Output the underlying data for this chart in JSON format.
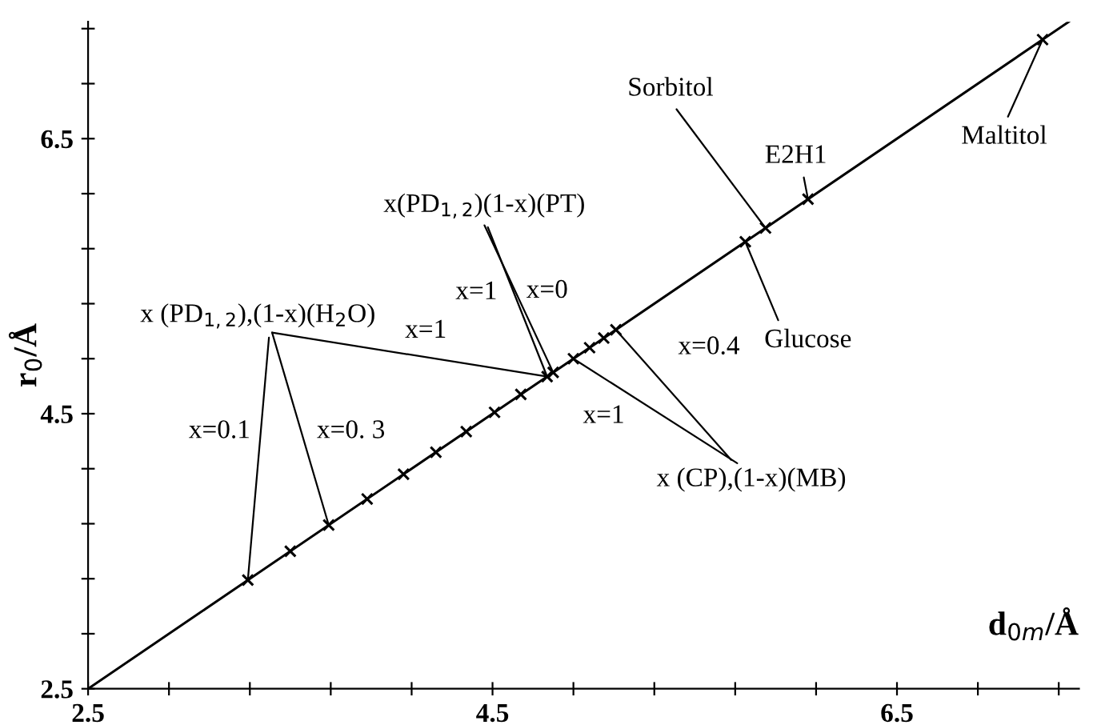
{
  "chart_data": {
    "type": "scatter",
    "xlabel": "d$_{0m}$/Å",
    "ylabel": "r$_{0}$/Å",
    "xlim": [
      2.5,
      7.4
    ],
    "ylim": [
      2.5,
      7.35
    ],
    "xticks": [
      2.5,
      {
        "value": 2.9,
        "label": null
      },
      {
        "value": 3.3,
        "label": null
      },
      {
        "value": 3.7,
        "label": null
      },
      {
        "value": 4.1,
        "label": null
      },
      4.5,
      {
        "value": 4.9,
        "label": null
      },
      {
        "value": 5.3,
        "label": null
      },
      {
        "value": 5.7,
        "label": null
      },
      {
        "value": 6.1,
        "label": null
      },
      6.5,
      {
        "value": 6.9,
        "label": null
      },
      {
        "value": 7.3,
        "label": null
      }
    ],
    "yticks": [
      2.5,
      {
        "value": 2.9,
        "label": null
      },
      {
        "value": 3.3,
        "label": null
      },
      {
        "value": 3.7,
        "label": null
      },
      {
        "value": 4.1,
        "label": null
      },
      4.5,
      {
        "value": 4.9,
        "label": null
      },
      {
        "value": 5.3,
        "label": null
      },
      {
        "value": 5.7,
        "label": null
      },
      {
        "value": 6.1,
        "label": null
      },
      6.5,
      {
        "value": 6.9,
        "label": null
      },
      {
        "value": 7.3,
        "label": null
      }
    ],
    "grid": false,
    "series": [
      {
        "type": "line",
        "color": "#000000",
        "line_style": "solid",
        "x": [
          2.5,
          7.35
        ],
        "values": [
          2.5,
          7.35
        ]
      },
      {
        "color": "#000000",
        "marker": "cross",
        "x": [
          3.29,
          3.5,
          3.69,
          3.88,
          4.06,
          4.22,
          4.37,
          4.51,
          4.64,
          4.77,
          4.8,
          4.9,
          4.98,
          5.05,
          5.11,
          5.75,
          5.85,
          6.06,
          7.22
        ],
        "values": [
          3.29,
          3.5,
          3.69,
          3.88,
          4.06,
          4.22,
          4.37,
          4.51,
          4.64,
          4.77,
          4.8,
          4.9,
          4.98,
          5.05,
          5.11,
          5.75,
          5.85,
          6.06,
          7.22
        ]
      }
    ],
    "annotations": [
      {
        "text": "x (PD$_{1,2}$),(1-x)(H$_{2}$O)",
        "x": 3.29,
        "y": 3.29
      },
      "x=0.1",
      "x=0. 3",
      "x=1",
      {
        "text": "x(PD$_{1,2}$)(1-x)(PT)",
        "x": 4.77,
        "y": 4.77
      },
      "x=1",
      "x=0",
      {
        "text": "x (CP),(1-x)(MB)",
        "x": 5.11,
        "y": 5.11
      },
      "x=0.4",
      "x=1",
      {
        "text": "Sorbitol",
        "x": 5.85,
        "y": 5.85
      },
      {
        "text": "Glucose",
        "x": 5.75,
        "y": 5.75
      },
      {
        "text": "E2H1",
        "x": 6.06,
        "y": 6.06
      },
      {
        "text": "Maltitol",
        "x": 7.22,
        "y": 7.22
      }
    ]
  }
}
